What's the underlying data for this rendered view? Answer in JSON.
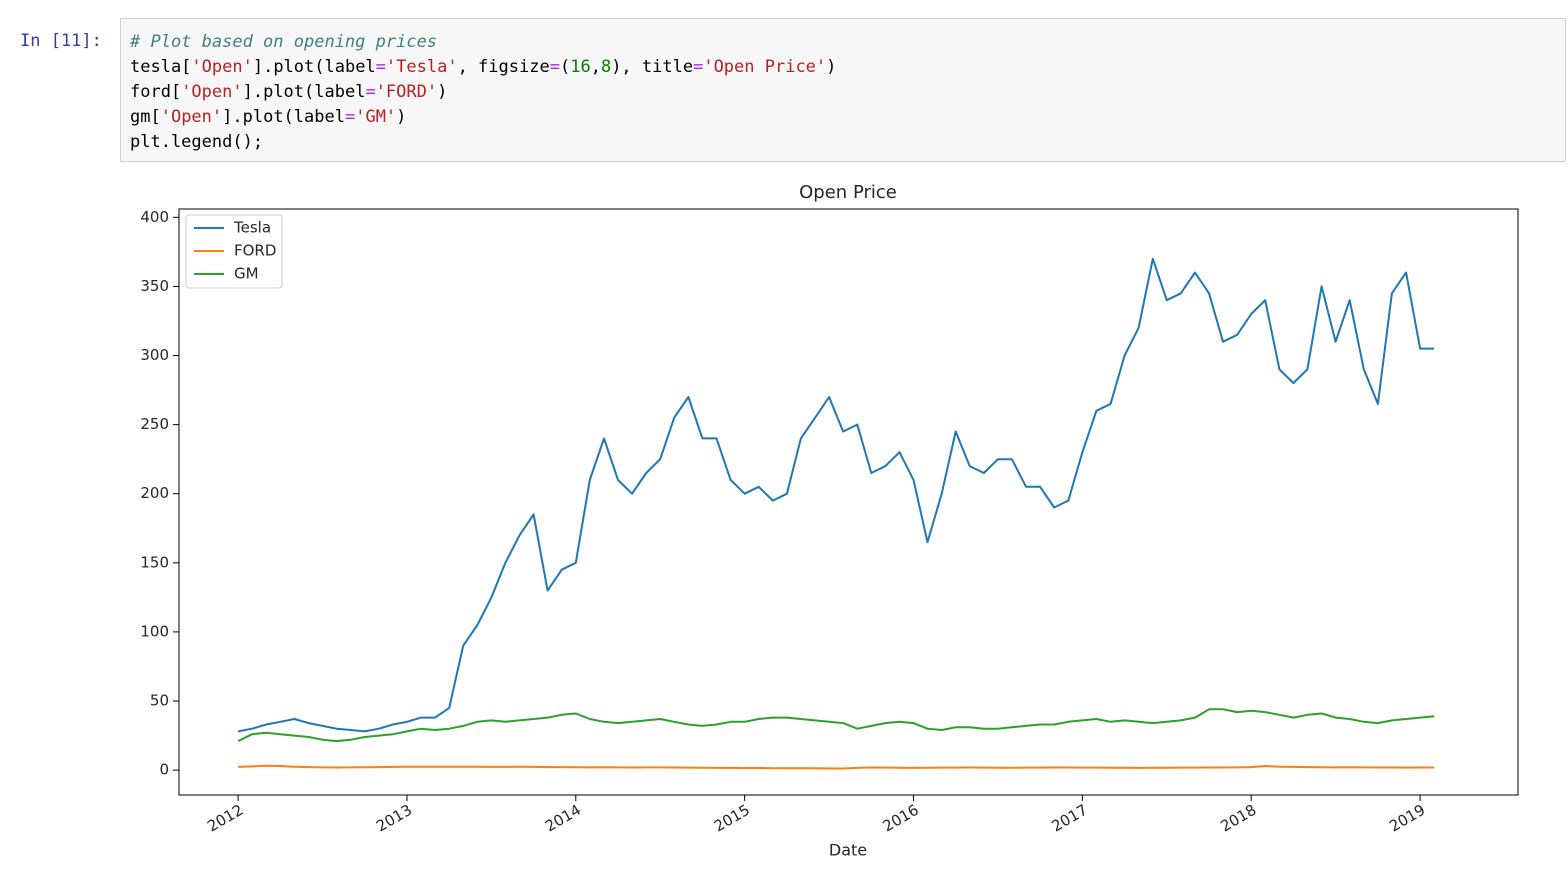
{
  "cell": {
    "prompt": "In [11]:",
    "code": [
      "# Plot based on opening prices",
      "tesla['Open'].plot(label='Tesla', figsize=(16,8), title='Open Price')",
      "ford['Open'].plot(label='FORD')",
      "gm['Open'].plot(label='GM')",
      "plt.legend();"
    ]
  },
  "chart_data": {
    "type": "line",
    "title": "Open Price",
    "x_label": "Date",
    "x": [
      2012.0,
      2012.083,
      2012.167,
      2012.25,
      2012.333,
      2012.417,
      2012.5,
      2012.583,
      2012.667,
      2012.75,
      2012.833,
      2012.917,
      2013.0,
      2013.083,
      2013.167,
      2013.25,
      2013.333,
      2013.417,
      2013.5,
      2013.583,
      2013.667,
      2013.75,
      2013.833,
      2013.917,
      2014.0,
      2014.083,
      2014.167,
      2014.25,
      2014.333,
      2014.417,
      2014.5,
      2014.583,
      2014.667,
      2014.75,
      2014.833,
      2014.917,
      2015.0,
      2015.083,
      2015.167,
      2015.25,
      2015.333,
      2015.417,
      2015.5,
      2015.583,
      2015.667,
      2015.75,
      2015.833,
      2015.917,
      2016.0,
      2016.083,
      2016.167,
      2016.25,
      2016.333,
      2016.417,
      2016.5,
      2016.583,
      2016.667,
      2016.75,
      2016.833,
      2016.917,
      2017.0,
      2017.083,
      2017.167,
      2017.25,
      2017.333,
      2017.417,
      2017.5,
      2017.583,
      2017.667,
      2017.75,
      2017.833,
      2017.917,
      2018.0,
      2018.083,
      2018.167,
      2018.25,
      2018.333,
      2018.417,
      2018.5,
      2018.583,
      2018.667,
      2018.75,
      2018.833,
      2018.917,
      2019.0,
      2019.083
    ],
    "series": [
      {
        "name": "Tesla",
        "color": "#1f77b4",
        "values": [
          28,
          30,
          33,
          35,
          37,
          34,
          32,
          30,
          29,
          28,
          30,
          33,
          35,
          38,
          38,
          45,
          90,
          105,
          125,
          150,
          170,
          185,
          130,
          145,
          150,
          210,
          240,
          210,
          200,
          215,
          225,
          255,
          270,
          240,
          240,
          210,
          200,
          205,
          195,
          200,
          240,
          255,
          270,
          245,
          250,
          215,
          220,
          230,
          210,
          165,
          200,
          245,
          220,
          215,
          225,
          225,
          205,
          205,
          190,
          195,
          230,
          260,
          265,
          300,
          320,
          370,
          340,
          345,
          360,
          345,
          310,
          315,
          330,
          340,
          290,
          280,
          290,
          350,
          310,
          340,
          290,
          265,
          345,
          360,
          305,
          305
        ]
      },
      {
        "name": "FORD",
        "color": "#ff7f0e",
        "values": [
          2.3,
          2.7,
          3.2,
          3.0,
          2.5,
          2.2,
          2.0,
          1.9,
          2.0,
          2.1,
          2.2,
          2.3,
          2.4,
          2.5,
          2.4,
          2.4,
          2.5,
          2.4,
          2.3,
          2.3,
          2.4,
          2.3,
          2.2,
          2.2,
          2.1,
          2.0,
          2.1,
          2.0,
          1.9,
          2.0,
          2.0,
          1.9,
          1.8,
          1.7,
          1.6,
          1.6,
          1.5,
          1.5,
          1.4,
          1.4,
          1.3,
          1.3,
          1.2,
          1.2,
          1.6,
          1.9,
          1.8,
          1.7,
          1.6,
          1.7,
          1.8,
          1.8,
          1.9,
          1.8,
          1.7,
          1.7,
          1.8,
          1.8,
          1.9,
          1.9,
          1.8,
          1.8,
          1.7,
          1.7,
          1.6,
          1.7,
          1.7,
          1.8,
          1.8,
          1.9,
          1.9,
          2.0,
          2.2,
          3.0,
          2.4,
          2.3,
          2.2,
          2.1,
          2.0,
          2.1,
          2.0,
          1.9,
          1.9,
          1.8,
          1.9,
          1.9
        ]
      },
      {
        "name": "GM",
        "color": "#2ca02c",
        "values": [
          21,
          26,
          27,
          26,
          25,
          24,
          22,
          21,
          22,
          24,
          25,
          26,
          28,
          30,
          29,
          30,
          32,
          35,
          36,
          35,
          36,
          37,
          38,
          40,
          41,
          37,
          35,
          34,
          35,
          36,
          37,
          35,
          33,
          32,
          33,
          35,
          35,
          37,
          38,
          38,
          37,
          36,
          35,
          34,
          30,
          32,
          34,
          35,
          34,
          30,
          29,
          31,
          31,
          30,
          30,
          31,
          32,
          33,
          33,
          35,
          36,
          37,
          35,
          36,
          35,
          34,
          35,
          36,
          38,
          44,
          44,
          42,
          43,
          42,
          40,
          38,
          40,
          41,
          38,
          37,
          35,
          34,
          36,
          37,
          38,
          39
        ]
      }
    ],
    "xlim": [
      2011.65,
      2019.58
    ],
    "xticks": [
      2012,
      2013,
      2014,
      2015,
      2016,
      2017,
      2018,
      2019
    ],
    "ylim": [
      -18,
      406
    ],
    "yticks": [
      0,
      50,
      100,
      150,
      200,
      250,
      300,
      350,
      400
    ],
    "legend": "upper left",
    "grid": false
  }
}
